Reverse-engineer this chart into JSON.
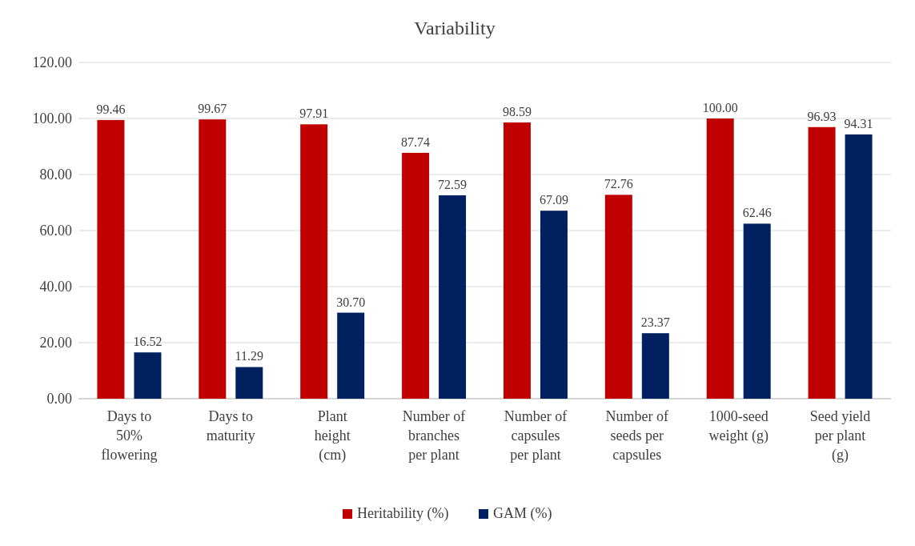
{
  "chart_data": {
    "type": "bar",
    "title": "Variability",
    "categories": [
      "Days to 50% flowering",
      "Days to maturity",
      "Plant height (cm)",
      "Number of branches per plant",
      "Number of capsules per plant",
      "Number of seeds per capsules",
      "1000-seed weight (g)",
      "Seed yield per plant (g)"
    ],
    "series": [
      {
        "name": "Heritability (%)",
        "color": "#c00000",
        "values": [
          99.46,
          99.67,
          97.91,
          87.74,
          98.59,
          72.76,
          100,
          96.93
        ],
        "value_labels": [
          "99.46",
          "99.67",
          "97.91",
          "87.74",
          "98.59",
          "72.76",
          "100.00",
          "96.93"
        ]
      },
      {
        "name": "GAM (%)",
        "color": "#002060",
        "values": [
          16.52,
          11.29,
          30.7,
          72.59,
          67.09,
          23.37,
          62.46,
          94.31
        ],
        "value_labels": [
          "16.52",
          "11.29",
          "30.70",
          "72.59",
          "67.09",
          "23.37",
          "62.46",
          "94.31"
        ]
      }
    ],
    "ylim": [
      0,
      120
    ],
    "yticks": [
      {
        "value": 0,
        "label": "0.00"
      },
      {
        "value": 20,
        "label": "20.00"
      },
      {
        "value": 40,
        "label": "40.00"
      },
      {
        "value": 60,
        "label": "60.00"
      },
      {
        "value": 80,
        "label": "80.00"
      },
      {
        "value": 100,
        "label": "100.00"
      },
      {
        "value": 120,
        "label": "120.00"
      }
    ],
    "grid": "y",
    "legend": "bottom"
  }
}
